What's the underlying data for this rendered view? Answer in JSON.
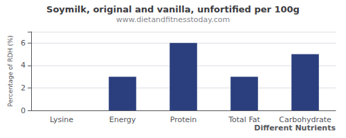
{
  "chart_data": {
    "type": "bar",
    "title": "Soymilk, original and vanilla, unfortified per 100g",
    "subtitle": "www.dietandfitnesstoday.com",
    "xlabel": "Different Nutrients",
    "ylabel": "Percentage of RDH (%)",
    "categories": [
      "Lysine",
      "Energy",
      "Protein",
      "Total Fat",
      "Carbohydrate"
    ],
    "values": [
      0.0,
      3.0,
      6.0,
      3.0,
      5.0
    ],
    "color": "#2B3F7E",
    "ylim": [
      0,
      7
    ],
    "yticks": [
      0,
      2,
      4,
      6
    ],
    "grid": true
  }
}
